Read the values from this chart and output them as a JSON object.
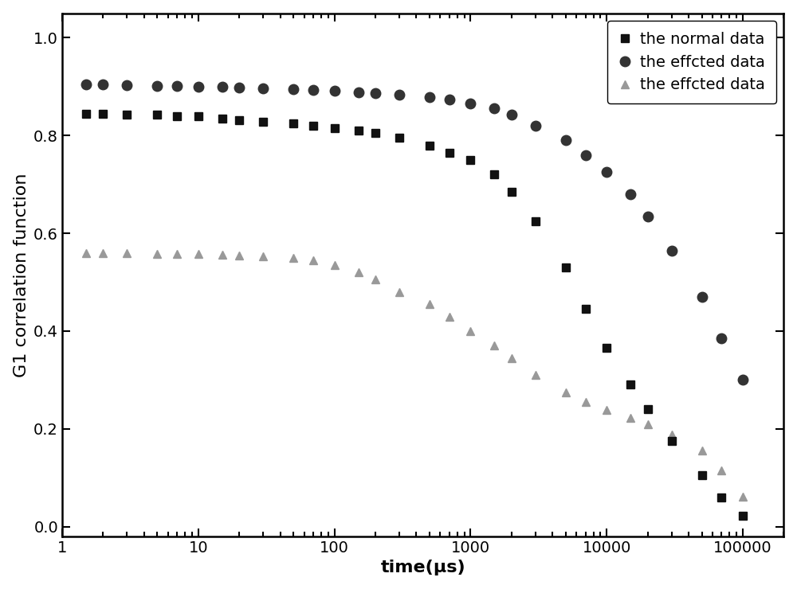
{
  "title": "",
  "xlabel": "time(μs)",
  "ylabel": "G1 correlation function",
  "xlim_log": [
    1,
    200000
  ],
  "ylim": [
    -0.02,
    1.05
  ],
  "legend_labels": [
    "the normal data",
    "the effcted data",
    "the effcted data"
  ],
  "series1_color": "#111111",
  "series2_color": "#333333",
  "series3_color": "#999999",
  "marker_size1": 7,
  "marker_size2": 9,
  "marker_size3": 7,
  "series1": {
    "x": [
      1.5,
      2.0,
      3.0,
      5.0,
      7.0,
      10,
      15,
      20,
      30,
      50,
      70,
      100,
      150,
      200,
      300,
      500,
      700,
      1000,
      1500,
      2000,
      3000,
      5000,
      7000,
      10000,
      15000,
      20000,
      30000,
      50000,
      70000,
      100000
    ],
    "y": [
      0.845,
      0.845,
      0.843,
      0.842,
      0.84,
      0.84,
      0.835,
      0.832,
      0.828,
      0.824,
      0.82,
      0.815,
      0.81,
      0.805,
      0.795,
      0.78,
      0.765,
      0.75,
      0.72,
      0.685,
      0.625,
      0.53,
      0.445,
      0.365,
      0.29,
      0.24,
      0.175,
      0.105,
      0.06,
      0.022
    ]
  },
  "series2": {
    "x": [
      1.5,
      2.0,
      3.0,
      5.0,
      7.0,
      10,
      15,
      20,
      30,
      50,
      70,
      100,
      150,
      200,
      300,
      500,
      700,
      1000,
      1500,
      2000,
      3000,
      5000,
      7000,
      10000,
      15000,
      20000,
      30000,
      50000,
      70000,
      100000
    ],
    "y": [
      0.905,
      0.904,
      0.903,
      0.902,
      0.901,
      0.9,
      0.899,
      0.898,
      0.897,
      0.895,
      0.893,
      0.891,
      0.889,
      0.887,
      0.883,
      0.878,
      0.873,
      0.865,
      0.855,
      0.843,
      0.82,
      0.79,
      0.76,
      0.725,
      0.68,
      0.635,
      0.565,
      0.47,
      0.385,
      0.3
    ]
  },
  "series3": {
    "x": [
      1.5,
      2.0,
      3.0,
      5.0,
      7.0,
      10,
      15,
      20,
      30,
      50,
      70,
      100,
      150,
      200,
      300,
      500,
      700,
      1000,
      1500,
      2000,
      3000,
      5000,
      7000,
      10000,
      15000,
      20000,
      30000,
      50000,
      70000,
      100000
    ],
    "y": [
      0.56,
      0.56,
      0.559,
      0.558,
      0.558,
      0.557,
      0.556,
      0.555,
      0.553,
      0.55,
      0.545,
      0.535,
      0.52,
      0.505,
      0.48,
      0.455,
      0.43,
      0.4,
      0.37,
      0.345,
      0.31,
      0.275,
      0.255,
      0.238,
      0.222,
      0.21,
      0.188,
      0.155,
      0.115,
      0.062
    ]
  },
  "background_color": "#ffffff",
  "legend_fontsize": 14,
  "axis_label_fontsize": 16,
  "tick_fontsize": 14,
  "xtick_labels": [
    "1",
    "10",
    "100",
    "1000",
    "10000",
    "100000"
  ],
  "xtick_positions": [
    1,
    10,
    100,
    1000,
    10000,
    100000
  ]
}
